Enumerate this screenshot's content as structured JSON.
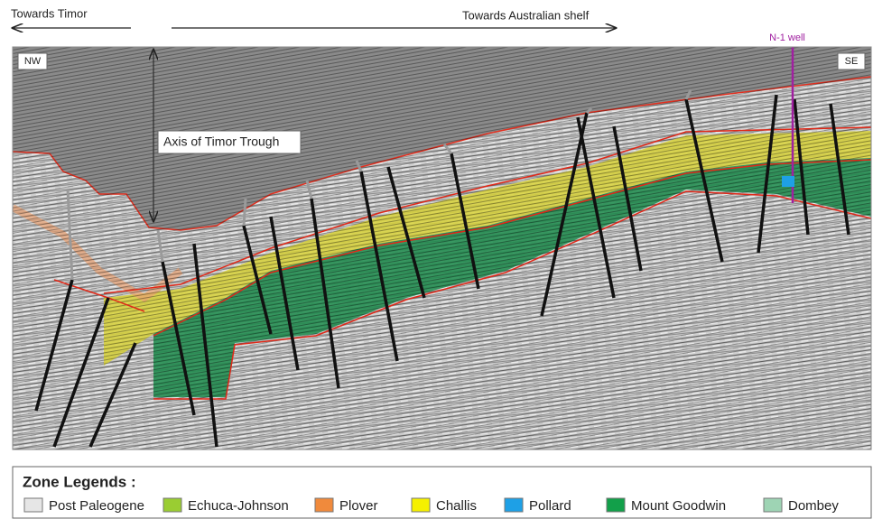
{
  "header": {
    "left_arrow": "Towards Timor",
    "right_arrow": "Towards Australian shelf"
  },
  "section": {
    "nw_label": "NW",
    "se_label": "SE",
    "well_label": "N-1 well",
    "trough_label": "Axis of Timor Trough"
  },
  "legend": {
    "title": "Zone Legends :",
    "items": [
      {
        "name": "Post Paleogene",
        "color": "#e6e6e6"
      },
      {
        "name": "Echuca-Johnson",
        "color": "#9acd32"
      },
      {
        "name": "Plover",
        "color": "#f08a3c"
      },
      {
        "name": "Challis",
        "color": "#f5f000"
      },
      {
        "name": "Pollard",
        "color": "#1ea0e6"
      },
      {
        "name": "Mount Goodwin",
        "color": "#12a04a"
      },
      {
        "name": "Dombey",
        "color": "#9ed4b4"
      }
    ]
  }
}
